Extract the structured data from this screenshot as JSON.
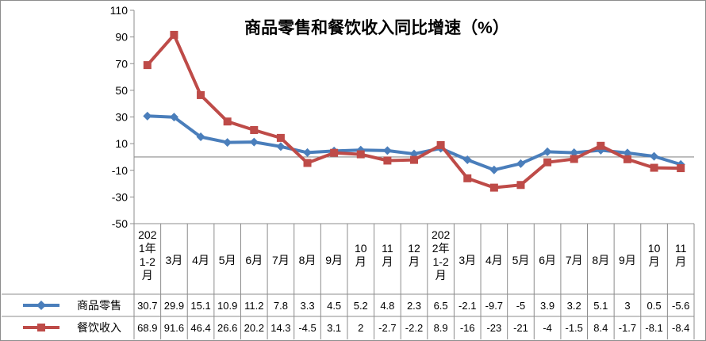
{
  "chart_data": {
    "type": "line",
    "title": "商品零售和餐饮收入同比增速（%）",
    "xlabel": "",
    "ylabel": "",
    "ylim": [
      -50,
      110
    ],
    "yticks": [
      110,
      90,
      70,
      50,
      30,
      10,
      -10,
      -30,
      -50
    ],
    "grid": false,
    "legend": "data-table-left",
    "categories": [
      [
        "2021年",
        "1-2月"
      ],
      [
        "3月"
      ],
      [
        "4月"
      ],
      [
        "5月"
      ],
      [
        "6月"
      ],
      [
        "7月"
      ],
      [
        "8月"
      ],
      [
        "9月"
      ],
      [
        "10月"
      ],
      [
        "11月"
      ],
      [
        "12月"
      ],
      [
        "2022年",
        "1-2月"
      ],
      [
        "3月"
      ],
      [
        "4月"
      ],
      [
        "5月"
      ],
      [
        "6月"
      ],
      [
        "7月"
      ],
      [
        "8月"
      ],
      [
        "9月"
      ],
      [
        "10月"
      ],
      [
        "11月"
      ]
    ],
    "series": [
      {
        "name": "商品零售",
        "color": "#4a7ebb",
        "marker": "diamond",
        "values": [
          30.7,
          29.9,
          15.1,
          10.9,
          11.2,
          7.8,
          3.3,
          4.5,
          5.2,
          4.8,
          2.3,
          6.5,
          -2.1,
          -9.7,
          -5,
          3.9,
          3.2,
          5.1,
          3,
          0.5,
          -5.6
        ]
      },
      {
        "name": "餐饮收入",
        "color": "#be4b48",
        "marker": "square",
        "values": [
          68.9,
          91.6,
          46.4,
          26.6,
          20.2,
          14.3,
          -4.5,
          3.1,
          2,
          -2.7,
          -2.2,
          8.9,
          -16,
          -23,
          -21,
          -4,
          -1.5,
          8.4,
          -1.7,
          -8.1,
          -8.4
        ]
      }
    ]
  }
}
